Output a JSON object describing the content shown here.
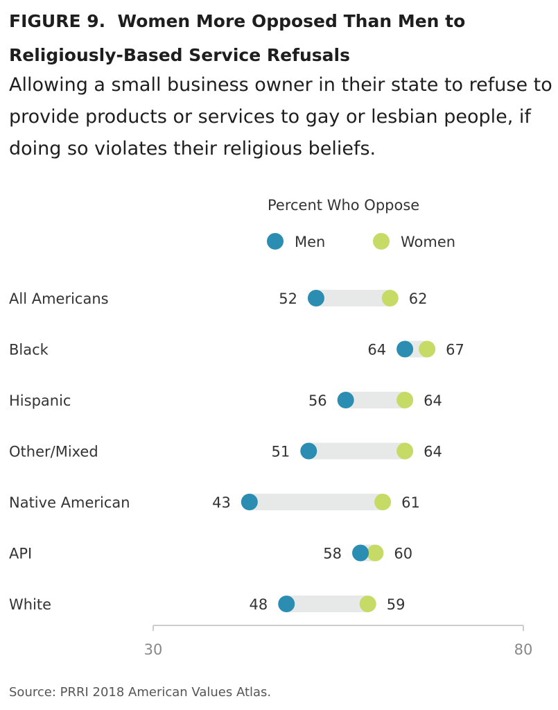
{
  "figure": {
    "title_label": "FIGURE 9.",
    "title_text": "Women More Opposed Than Men to Religiously-Based Service Refusals",
    "subtitle": "Allowing a small business owner in their state to refuse to provide products or services to gay or lesbian people, if doing so violates their religious beliefs.",
    "source": "Source: PRRI 2018 American Values Atlas."
  },
  "chart_data": {
    "type": "dumbbell",
    "title": "FIGURE 9. Women More Opposed Than Men to Religiously-Based Service Refusals",
    "subtitle": "Allowing a small business owner in their state to refuse to provide products or services to gay or lesbian people, if doing so violates their religious beliefs.",
    "legend_title": "Percent Who Oppose",
    "legend_position": "top",
    "xlim": [
      30,
      80
    ],
    "xticks": [
      30,
      80
    ],
    "grid": false,
    "categories": [
      "All Americans",
      "Black",
      "Hispanic",
      "Other/Mixed",
      "Native American",
      "API",
      "White"
    ],
    "series": [
      {
        "name": "Men",
        "color": "#2a8db1",
        "values": [
          52,
          64,
          56,
          51,
          43,
          58,
          48
        ]
      },
      {
        "name": "Women",
        "color": "#c5db66",
        "values": [
          62,
          67,
          64,
          64,
          61,
          60,
          59
        ]
      }
    ],
    "connector_color": "#e7e9e8",
    "axis_color": "#cccccc"
  }
}
